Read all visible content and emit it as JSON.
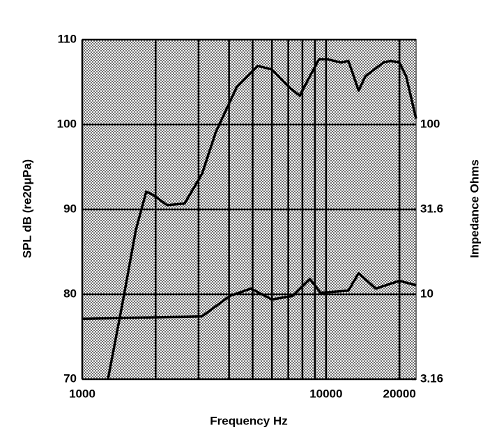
{
  "chart_data": {
    "type": "line",
    "x_label": "Frequency Hz",
    "y_label": "SPL dB (re20μPa)",
    "y2_label": "Impedance Ohms",
    "xscale": "log",
    "xlim": [
      1000,
      23400
    ],
    "xticks": [
      1000,
      10000,
      20000
    ],
    "xminor": [
      2000,
      3000,
      4000,
      5000,
      6000,
      7000,
      8000,
      9000,
      20000
    ],
    "ylim": [
      70,
      110
    ],
    "yticks": [
      70,
      80,
      90,
      100,
      110
    ],
    "y2scale": "log",
    "y2lim": [
      3.16,
      316
    ],
    "y2ticks": [
      3.16,
      10,
      31.6,
      100
    ],
    "grid": true,
    "series": [
      {
        "color": "#000000",
        "x": [
          1275,
          1455,
          1660,
          1830,
          1955,
          2230,
          2630,
          3100,
          3530,
          4300,
          5250,
          5990,
          7050,
          7800,
          8590,
          9360,
          10100,
          11550,
          12350,
          13600,
          14500,
          17200,
          18400,
          20000,
          21300,
          23400
        ],
        "values": [
          70,
          78.6,
          87.6,
          92.1,
          91.7,
          90.5,
          90.7,
          94.2,
          99.1,
          104.4,
          106.9,
          106.5,
          104.4,
          103.4,
          105.7,
          107.7,
          107.7,
          107.3,
          107.5,
          104.0,
          105.7,
          107.3,
          107.5,
          107.3,
          105.7,
          100.7
        ]
      },
      {
        "color": "#000000",
        "axis": "y2",
        "x": [
          1000,
          3100,
          4030,
          4920,
          5990,
          7300,
          8590,
          9490,
          12350,
          13600,
          16000,
          20000,
          23400
        ],
        "values": [
          7.16,
          7.41,
          9.77,
          10.8,
          9.32,
          9.77,
          12.3,
          10.2,
          10.5,
          13.3,
          10.8,
          12.0,
          11.3
        ]
      }
    ]
  }
}
